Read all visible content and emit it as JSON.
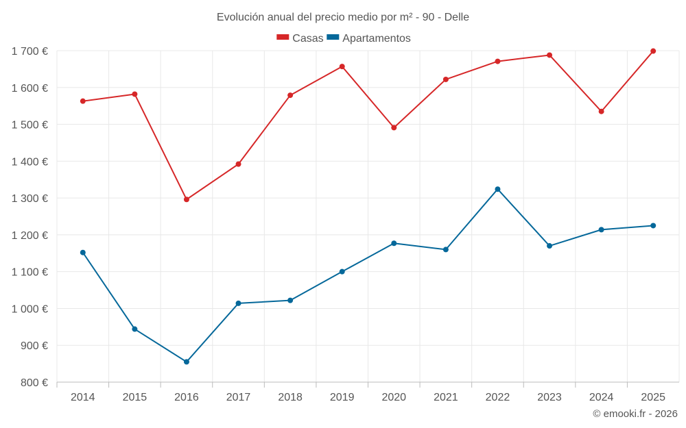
{
  "chart_data": {
    "type": "line",
    "title": "Evolución anual del precio medio por m² - 90 - Delle",
    "categories": [
      "2014",
      "2015",
      "2016",
      "2017",
      "2018",
      "2019",
      "2020",
      "2021",
      "2022",
      "2023",
      "2024",
      "2025"
    ],
    "series": [
      {
        "name": "Casas",
        "color": "#d62728",
        "values": [
          1563,
          1582,
          1296,
          1392,
          1579,
          1657,
          1491,
          1622,
          1671,
          1688,
          1535,
          1699
        ]
      },
      {
        "name": "Apartamentos",
        "color": "#05689a",
        "values": [
          1152,
          944,
          855,
          1014,
          1022,
          1100,
          1177,
          1160,
          1324,
          1170,
          1214,
          1225
        ]
      }
    ],
    "ylim": [
      800,
      1700
    ],
    "yticks": [
      800,
      900,
      1000,
      1100,
      1200,
      1300,
      1400,
      1500,
      1600,
      1700
    ],
    "ytick_labels": [
      "800 €",
      "900 €",
      "1 000 €",
      "1 100 €",
      "1 200 €",
      "1 300 €",
      "1 400 €",
      "1 500 €",
      "1 600 €",
      "1 700 €"
    ],
    "xlabel": "",
    "ylabel": "",
    "grid": true,
    "legend_position": "top-center"
  },
  "credit": "© emooki.fr - 2026"
}
